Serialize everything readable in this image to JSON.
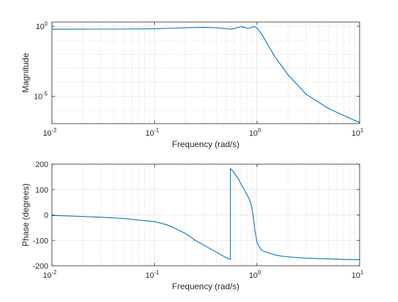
{
  "colors": {
    "series": "#0072BD"
  },
  "chart_data": [
    {
      "type": "line",
      "panel": "magnitude",
      "xlabel": "Frequency (rad/s)",
      "ylabel": "Magnitude",
      "xscale": "log",
      "yscale": "log",
      "xlim": [
        0.01,
        10
      ],
      "ylim": [
        1.1e-07,
        2
      ],
      "grid": true,
      "x_ticks": [
        {
          "base": "10",
          "exp": "-2",
          "value": 0.01
        },
        {
          "base": "10",
          "exp": "-1",
          "value": 0.1
        },
        {
          "base": "10",
          "exp": "0",
          "value": 1
        },
        {
          "base": "10",
          "exp": "1",
          "value": 10
        }
      ],
      "y_ticks": [
        {
          "base": "10",
          "exp": "0",
          "value": 1
        },
        {
          "base": "10",
          "exp": "-5",
          "value": 1e-05
        }
      ],
      "series": [
        {
          "x": [
            0.01,
            0.02,
            0.05,
            0.1,
            0.2,
            0.3,
            0.4,
            0.5,
            0.55,
            0.6,
            0.65,
            0.7,
            0.75,
            0.8,
            0.85,
            0.9,
            0.95,
            1.0,
            1.1,
            1.2,
            1.5,
            2,
            3,
            5,
            7,
            10
          ],
          "y": [
            0.62,
            0.62,
            0.63,
            0.66,
            0.78,
            0.84,
            0.78,
            0.67,
            0.62,
            0.68,
            0.82,
            0.94,
            0.86,
            0.72,
            0.74,
            0.88,
            0.95,
            0.74,
            0.3,
            0.1,
            0.0063,
            0.00035,
            1.4e-05,
            1.3e-06,
            4.2e-07,
            1.3e-07
          ]
        }
      ]
    },
    {
      "type": "line",
      "panel": "phase",
      "xlabel": "Frequency (rad/s)",
      "ylabel": "Phase (degrees)",
      "xscale": "log",
      "yscale": "linear",
      "xlim": [
        0.01,
        10
      ],
      "ylim": [
        -200,
        200
      ],
      "grid": true,
      "x_ticks": [
        {
          "base": "10",
          "exp": "-2",
          "value": 0.01
        },
        {
          "base": "10",
          "exp": "-1",
          "value": 0.1
        },
        {
          "base": "10",
          "exp": "0",
          "value": 1
        },
        {
          "base": "10",
          "exp": "1",
          "value": 10
        }
      ],
      "y_ticks": [
        200,
        100,
        0,
        -100,
        -200
      ],
      "series": [
        {
          "x": [
            0.01,
            0.015,
            0.02,
            0.03,
            0.05,
            0.07,
            0.1,
            0.13,
            0.15,
            0.2,
            0.25,
            0.3,
            0.35,
            0.4,
            0.45,
            0.5,
            0.55,
            0.55,
            0.58,
            0.62,
            0.66,
            0.7,
            0.75,
            0.8,
            0.85,
            0.9,
            0.95,
            1.0,
            1.1,
            1.3,
            1.6,
            2,
            3,
            5,
            7,
            10
          ],
          "y": [
            -2,
            -4,
            -6,
            -9,
            -14,
            -20,
            -26,
            -38,
            -48,
            -73,
            -100,
            -118,
            -133,
            -146,
            -158,
            -168,
            -175,
            182,
            174,
            156,
            141,
            120,
            100,
            78,
            58,
            20,
            -55,
            -110,
            -138,
            -150,
            -160,
            -165,
            -170,
            -173,
            -175,
            -176
          ]
        }
      ]
    }
  ]
}
